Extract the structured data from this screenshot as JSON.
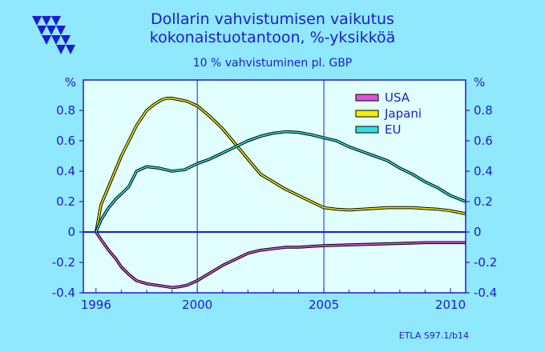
{
  "colors": {
    "background": "#8fe8fb",
    "plot_background": "#e2ffff",
    "axis": "#1c1cd0",
    "text": "#1c1cd0",
    "zero_line": "#1c1cd0",
    "grid": "#1c1cd0"
  },
  "logo": {
    "name": "etla-triangles-logo"
  },
  "footer": {
    "source": "ETLA S97.1/b14"
  },
  "chart_data": {
    "type": "line",
    "title_line1": "Dollarin vahvistumisen vaikutus",
    "title_line2": "kokonaistuotantoon, %-yksikköä",
    "subtitle": "10 % vahvistuminen pl. GBP",
    "ylabel_left": "%",
    "ylabel_right": "%",
    "xlim": [
      1995.5,
      2010.6
    ],
    "ylim": [
      -0.4,
      1.0
    ],
    "x_ticks": [
      1996,
      2000,
      2005,
      2010
    ],
    "x_tick_labels": [
      "1996",
      "2000",
      "2005",
      "2010"
    ],
    "y_ticks": [
      -0.4,
      -0.2,
      0,
      0.2,
      0.4,
      0.6,
      0.8
    ],
    "y_tick_labels": [
      "-0.4",
      "-0.2",
      "0",
      "0.2",
      "0.4",
      "0.6",
      "0.8"
    ],
    "grid": {
      "vertical": [
        2000,
        2005
      ],
      "horizontal": [
        0
      ]
    },
    "legend_position": "top-right",
    "series": [
      {
        "name": "USA",
        "color": "#e050e0",
        "points": [
          [
            1996,
            0
          ],
          [
            1996.2,
            -0.05
          ],
          [
            1996.5,
            -0.12
          ],
          [
            1996.8,
            -0.18
          ],
          [
            1997.0,
            -0.23
          ],
          [
            1997.3,
            -0.28
          ],
          [
            1997.6,
            -0.32
          ],
          [
            1998.0,
            -0.34
          ],
          [
            1998.4,
            -0.35
          ],
          [
            1998.8,
            -0.36
          ],
          [
            1999.0,
            -0.365
          ],
          [
            1999.3,
            -0.36
          ],
          [
            1999.6,
            -0.35
          ],
          [
            2000.0,
            -0.32
          ],
          [
            2000.3,
            -0.29
          ],
          [
            2000.6,
            -0.26
          ],
          [
            2001.0,
            -0.22
          ],
          [
            2001.5,
            -0.18
          ],
          [
            2002.0,
            -0.14
          ],
          [
            2002.5,
            -0.12
          ],
          [
            2003.0,
            -0.11
          ],
          [
            2003.5,
            -0.1
          ],
          [
            2004.0,
            -0.1
          ],
          [
            2004.5,
            -0.095
          ],
          [
            2005.0,
            -0.09
          ],
          [
            2006.0,
            -0.085
          ],
          [
            2007.0,
            -0.08
          ],
          [
            2008.0,
            -0.075
          ],
          [
            2009.0,
            -0.07
          ],
          [
            2010.0,
            -0.07
          ],
          [
            2010.6,
            -0.07
          ]
        ]
      },
      {
        "name": "Japani",
        "color": "#f0f000",
        "points": [
          [
            1996,
            0
          ],
          [
            1996.2,
            0.18
          ],
          [
            1996.5,
            0.3
          ],
          [
            1996.8,
            0.42
          ],
          [
            1997.0,
            0.5
          ],
          [
            1997.3,
            0.6
          ],
          [
            1997.6,
            0.7
          ],
          [
            1998.0,
            0.8
          ],
          [
            1998.3,
            0.84
          ],
          [
            1998.6,
            0.87
          ],
          [
            1998.8,
            0.88
          ],
          [
            1999.0,
            0.88
          ],
          [
            1999.3,
            0.87
          ],
          [
            1999.6,
            0.86
          ],
          [
            2000.0,
            0.83
          ],
          [
            2000.5,
            0.76
          ],
          [
            2001.0,
            0.68
          ],
          [
            2001.5,
            0.58
          ],
          [
            2002.0,
            0.48
          ],
          [
            2002.5,
            0.38
          ],
          [
            2003.0,
            0.33
          ],
          [
            2003.5,
            0.28
          ],
          [
            2004.0,
            0.24
          ],
          [
            2004.5,
            0.2
          ],
          [
            2005.0,
            0.16
          ],
          [
            2005.5,
            0.15
          ],
          [
            2006.0,
            0.145
          ],
          [
            2006.5,
            0.15
          ],
          [
            2007.0,
            0.155
          ],
          [
            2007.5,
            0.16
          ],
          [
            2008.0,
            0.16
          ],
          [
            2008.5,
            0.16
          ],
          [
            2009.0,
            0.155
          ],
          [
            2009.5,
            0.15
          ],
          [
            2010.0,
            0.14
          ],
          [
            2010.6,
            0.12
          ]
        ]
      },
      {
        "name": "EU",
        "color": "#30e0e0",
        "points": [
          [
            1996,
            0
          ],
          [
            1996.2,
            0.08
          ],
          [
            1996.5,
            0.16
          ],
          [
            1996.8,
            0.22
          ],
          [
            1997.0,
            0.25
          ],
          [
            1997.3,
            0.3
          ],
          [
            1997.6,
            0.4
          ],
          [
            1998.0,
            0.43
          ],
          [
            1998.5,
            0.42
          ],
          [
            1999.0,
            0.4
          ],
          [
            1999.5,
            0.41
          ],
          [
            2000.0,
            0.45
          ],
          [
            2000.5,
            0.48
          ],
          [
            2001.0,
            0.52
          ],
          [
            2001.5,
            0.56
          ],
          [
            2002.0,
            0.6
          ],
          [
            2002.5,
            0.63
          ],
          [
            2003.0,
            0.65
          ],
          [
            2003.5,
            0.66
          ],
          [
            2004.0,
            0.655
          ],
          [
            2004.5,
            0.64
          ],
          [
            2005.0,
            0.62
          ],
          [
            2005.5,
            0.6
          ],
          [
            2006.0,
            0.56
          ],
          [
            2006.5,
            0.53
          ],
          [
            2007.0,
            0.5
          ],
          [
            2007.5,
            0.47
          ],
          [
            2008.0,
            0.42
          ],
          [
            2008.5,
            0.38
          ],
          [
            2009.0,
            0.33
          ],
          [
            2009.5,
            0.29
          ],
          [
            2010.0,
            0.24
          ],
          [
            2010.6,
            0.2
          ]
        ]
      }
    ]
  }
}
